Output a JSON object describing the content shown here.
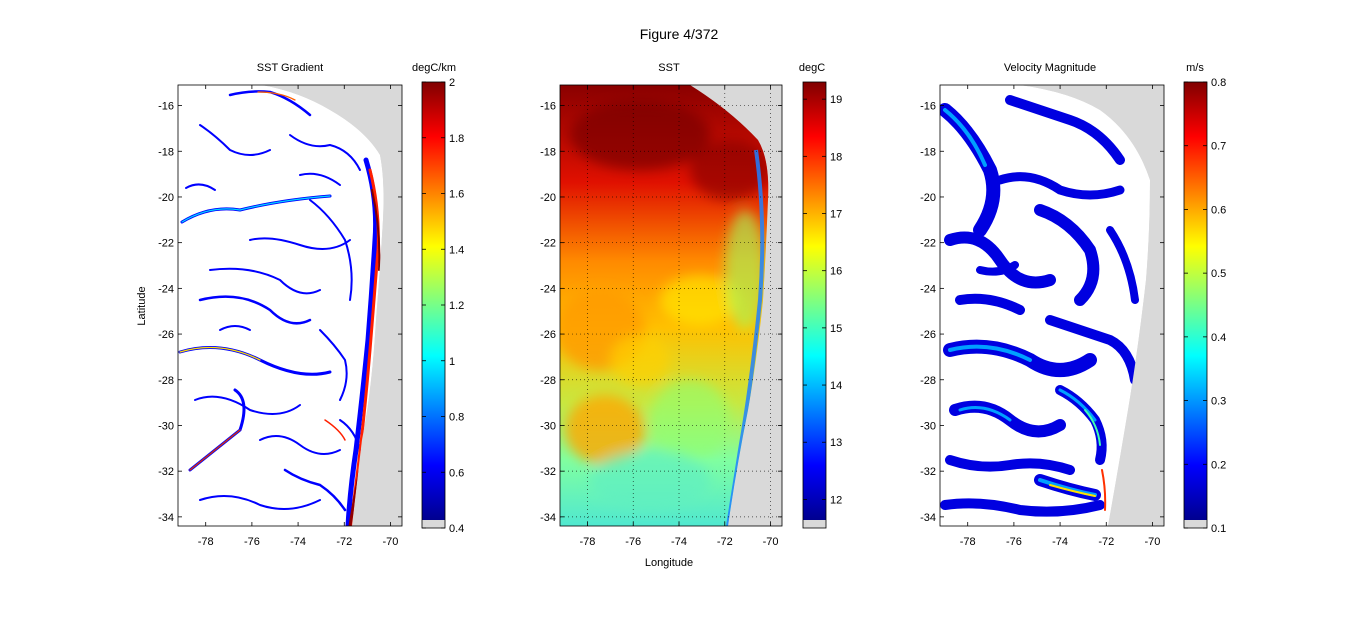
{
  "figure_title": "Figure  4/372",
  "colors": {
    "land": "#d9d9d9",
    "background": "#ffffff",
    "axis": "#000000",
    "jet_stops": [
      "#00008f",
      "#0000ff",
      "#00ffff",
      "#ffff00",
      "#ff0000",
      "#800000"
    ]
  },
  "chart_data": [
    {
      "type": "heatmap",
      "title": "SST Gradient",
      "xlabel": "",
      "ylabel": "Latitude",
      "xticks": [
        "-78",
        "-76",
        "-74",
        "-72",
        "-70"
      ],
      "yticks": [
        "-16",
        "-18",
        "-20",
        "-22",
        "-24",
        "-26",
        "-28",
        "-30",
        "-32",
        "-34"
      ],
      "xlim": [
        -79.2,
        -69.5
      ],
      "ylim": [
        -34.4,
        -15.1
      ],
      "grid": false,
      "colormap": "jet",
      "colorbar": {
        "label": "degC/km",
        "range": [
          0.4,
          2
        ],
        "ticks": [
          "2",
          "1.8",
          "1.6",
          "1.4",
          "1.2",
          "1",
          "0.8",
          "0.6",
          "0.4"
        ]
      }
    },
    {
      "type": "heatmap",
      "title": "SST",
      "xlabel": "Longitude",
      "ylabel": "",
      "xticks": [
        "-78",
        "-76",
        "-74",
        "-72",
        "-70"
      ],
      "yticks": [
        "-16",
        "-18",
        "-20",
        "-22",
        "-24",
        "-26",
        "-28",
        "-30",
        "-32",
        "-34"
      ],
      "xlim": [
        -79.2,
        -69.5
      ],
      "ylim": [
        -34.4,
        -15.1
      ],
      "grid": true,
      "colormap": "jet",
      "colorbar": {
        "label": "degC",
        "range": [
          11.5,
          19.3
        ],
        "ticks": [
          "19",
          "18",
          "17",
          "16",
          "15",
          "14",
          "13",
          "12"
        ]
      }
    },
    {
      "type": "heatmap",
      "title": "Velocity Magnitude",
      "xlabel": "",
      "ylabel": "",
      "xticks": [
        "-78",
        "-76",
        "-74",
        "-72",
        "-70"
      ],
      "yticks": [
        "-16",
        "-18",
        "-20",
        "-22",
        "-24",
        "-26",
        "-28",
        "-30",
        "-32",
        "-34"
      ],
      "xlim": [
        -79.2,
        -69.5
      ],
      "ylim": [
        -34.4,
        -15.1
      ],
      "grid": false,
      "colormap": "jet",
      "colorbar": {
        "label": "m/s",
        "range": [
          0.1,
          0.8
        ],
        "ticks": [
          "0.8",
          "0.7",
          "0.6",
          "0.5",
          "0.4",
          "0.3",
          "0.2",
          "0.1"
        ]
      }
    }
  ]
}
